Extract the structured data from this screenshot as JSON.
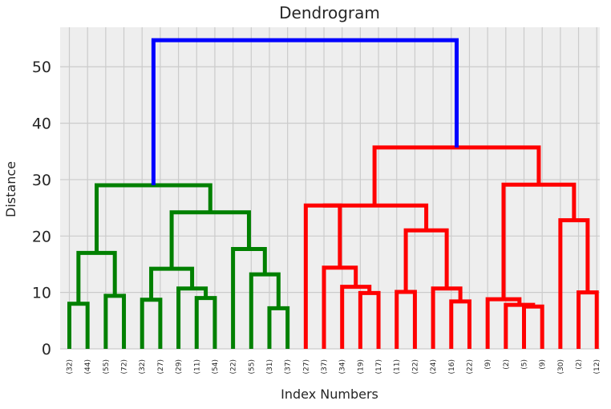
{
  "chart_data": {
    "type": "dendrogram",
    "title": "Dendrogram",
    "xlabel": "Index Numbers",
    "ylabel": "Distance",
    "ylim": [
      0,
      57
    ],
    "yticks": [
      0,
      10,
      20,
      30,
      40,
      50
    ],
    "grid": true,
    "leaf_labels": [
      "(32)",
      "(44)",
      "(55)",
      "(72)",
      "(32)",
      "(27)",
      "(29)",
      "(11)",
      "(54)",
      "(22)",
      "(55)",
      "(31)",
      "(37)",
      "(27)",
      "(37)",
      "(34)",
      "(19)",
      "(17)",
      "(11)",
      "(22)",
      "(24)",
      "(16)",
      "(22)",
      "(9)",
      "(2)",
      "(5)",
      "(9)",
      "(30)",
      "(2)",
      "(12)"
    ],
    "links": [
      {
        "left": 0,
        "right": 1,
        "height": 8.0,
        "color": "#008000"
      },
      {
        "left": 2,
        "right": 3,
        "height": 9.4,
        "color": "#008000"
      },
      {
        "left": 30,
        "right": 31,
        "height": 17.0,
        "color": "#008000"
      },
      {
        "left": 4,
        "right": 5,
        "height": 8.7,
        "color": "#008000"
      },
      {
        "left": 7,
        "right": 8,
        "height": 9.0,
        "color": "#008000"
      },
      {
        "left": 6,
        "right": 34,
        "height": 10.7,
        "color": "#008000"
      },
      {
        "left": 33,
        "right": 35,
        "height": 14.2,
        "color": "#008000"
      },
      {
        "left": 11,
        "right": 12,
        "height": 7.2,
        "color": "#008000"
      },
      {
        "left": 10,
        "right": 37,
        "height": 13.2,
        "color": "#008000"
      },
      {
        "left": 9,
        "right": 38,
        "height": 17.7,
        "color": "#008000"
      },
      {
        "left": 36,
        "right": 39,
        "height": 24.2,
        "color": "#008000"
      },
      {
        "left": 32,
        "right": 40,
        "height": 29.0,
        "color": "#008000"
      },
      {
        "left": 16,
        "right": 17,
        "height": 9.9,
        "color": "#ff0000"
      },
      {
        "left": 15,
        "right": 42,
        "height": 11.0,
        "color": "#ff0000"
      },
      {
        "left": 14,
        "right": 43,
        "height": 14.4,
        "color": "#ff0000"
      },
      {
        "left": 13,
        "right": 44,
        "height": 25.4,
        "color": "#ff0000"
      },
      {
        "left": 18,
        "right": 19,
        "height": 10.1,
        "color": "#ff0000"
      },
      {
        "left": 21,
        "right": 22,
        "height": 8.4,
        "color": "#ff0000"
      },
      {
        "left": 20,
        "right": 47,
        "height": 10.7,
        "color": "#ff0000"
      },
      {
        "left": 46,
        "right": 48,
        "height": 21.0,
        "color": "#ff0000"
      },
      {
        "left": 45,
        "right": 49,
        "height": 25.4,
        "color": "#ff0000"
      },
      {
        "left": 25,
        "right": 26,
        "height": 7.5,
        "color": "#ff0000"
      },
      {
        "left": 24,
        "right": 51,
        "height": 7.8,
        "color": "#ff0000"
      },
      {
        "left": 23,
        "right": 52,
        "height": 8.8,
        "color": "#ff0000"
      },
      {
        "left": 28,
        "right": 29,
        "height": 10.0,
        "color": "#ff0000"
      },
      {
        "left": 27,
        "right": 54,
        "height": 22.8,
        "color": "#ff0000"
      },
      {
        "left": 53,
        "right": 55,
        "height": 29.1,
        "color": "#ff0000"
      },
      {
        "left": 50,
        "right": 56,
        "height": 35.7,
        "color": "#ff0000"
      },
      {
        "left": 41,
        "right": 57,
        "height": 54.7,
        "color": "#0000ff"
      }
    ]
  }
}
